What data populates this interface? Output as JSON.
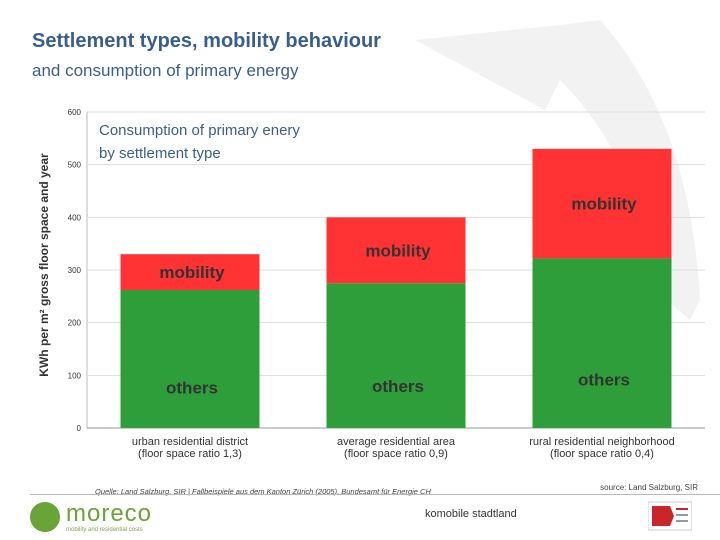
{
  "slide": {
    "title": "Settlement types, mobility behaviour",
    "subtitle": "and consumption of primary energy"
  },
  "colors": {
    "title": "#3a5e8c",
    "mobility": "#ff3333",
    "others": "#2e9e3a",
    "label_text": "#333333"
  },
  "chart_data": {
    "type": "bar",
    "stacked": true,
    "title": "Consumption of primary enery by settlement type",
    "title_lines": [
      "Consumption of primary enery",
      "by settlement type"
    ],
    "ylabel": "KWh per m² gross floor space and year",
    "ylim": [
      0,
      600
    ],
    "yticks": [
      0,
      100,
      200,
      300,
      400,
      500,
      600
    ],
    "grid": true,
    "categories": [
      "urban residential district (floor space ratio 1,3)",
      "average residential area (floor space ratio 0,9)",
      "rural residential neighborhood (floor space ratio 0,4)"
    ],
    "category_lines": [
      [
        "urban residential district",
        "(floor space ratio 1,3)"
      ],
      [
        "average residential area",
        "(floor space ratio 0,9)"
      ],
      [
        "rural residential neighborhood",
        "(floor space ratio 0,4)"
      ]
    ],
    "series": [
      {
        "name": "others",
        "values": [
          262,
          275,
          322
        ]
      },
      {
        "name": "mobility",
        "values": [
          68,
          125,
          208
        ]
      }
    ],
    "source_left": "Quelle: Land Salzburg, SIR | Fallbeispiele aus dem Kanton Zürich (2005), Bundesamt für Energie CH",
    "source_right": "source: Land Salzburg, SIR"
  },
  "footer": {
    "logo_text": "moreco",
    "logo_tagline": "mobility and residential costs",
    "center_text": "komobile stadtland"
  }
}
